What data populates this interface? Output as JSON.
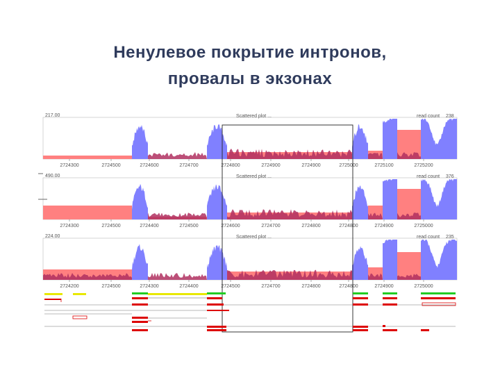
{
  "slide": {
    "title_line1": "Ненулевое покрытие интронов,",
    "title_line2": "провалы в экзонах"
  },
  "colors": {
    "title": "#2f3b5c",
    "exon_coverage": "#8080ff",
    "intron_band": "#ff8080",
    "intron_low_coverage": "#b03060",
    "gene_track": "#dd0000",
    "alt_track_yellow": "#e8e800",
    "alt_track_green": "#22cc22"
  },
  "panels": [
    {
      "ymax_label": "217.00",
      "header_label": "Scattered plot ...",
      "read_count_label": "read count",
      "read_count_value": "238",
      "ticks": [
        "2724300",
        "2724500",
        "2724600",
        "2724700",
        "2724800",
        "2724900",
        "2724900",
        "2725000",
        "2725100",
        "2725200"
      ]
    },
    {
      "ymax_label": "490.00",
      "header_label": "Scattered plot ...",
      "read_count_label": "read count",
      "read_count_value": "376",
      "ticks": [
        "2724300",
        "2724500",
        "2724400",
        "2724500",
        "2724600",
        "2724700",
        "2724800",
        "2724800",
        "2724900",
        "2725000"
      ]
    },
    {
      "ymax_label": "224.00",
      "header_label": "Scattered plot ...",
      "read_count_label": "read count",
      "read_count_value": "235",
      "ticks": [
        "2724200",
        "2724500",
        "2724300",
        "2724400",
        "2724500",
        "2724700",
        "2724800",
        "2724800",
        "2724900",
        "2725000"
      ]
    }
  ]
}
